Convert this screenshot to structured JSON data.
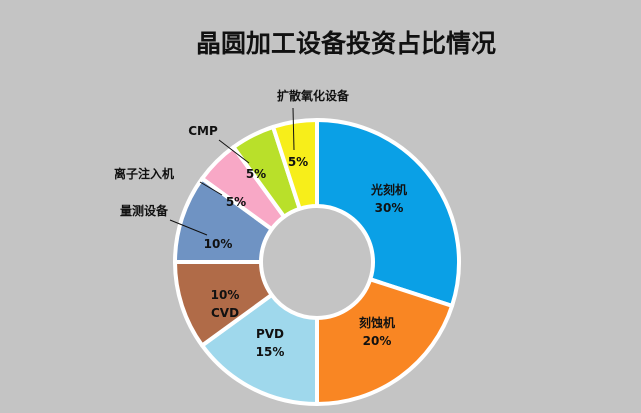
{
  "chart_data": {
    "type": "pie",
    "variant": "donut",
    "title": "晶圆加工设备投资占比情况",
    "slices": [
      {
        "name": "光刻机",
        "value": 30,
        "label": "30%",
        "color": "#0aa0e6"
      },
      {
        "name": "刻蚀机",
        "value": 20,
        "label": "20%",
        "color": "#f98623"
      },
      {
        "name": "PVD",
        "value": 15,
        "label": "15%",
        "color": "#9fd8ec"
      },
      {
        "name": "CVD",
        "value": 10,
        "label": "10%",
        "color": "#b06b48"
      },
      {
        "name": "量测设备",
        "value": 10,
        "label": "10%",
        "color": "#6f93c3"
      },
      {
        "name": "离子注入机",
        "value": 5,
        "label": "5%",
        "color": "#f8a8c6"
      },
      {
        "name": "CMP",
        "value": 5,
        "label": "5%",
        "color": "#b9e02a"
      },
      {
        "name": "扩散氧化设备",
        "value": 5,
        "label": "5%",
        "color": "#f7ee1a"
      }
    ]
  }
}
